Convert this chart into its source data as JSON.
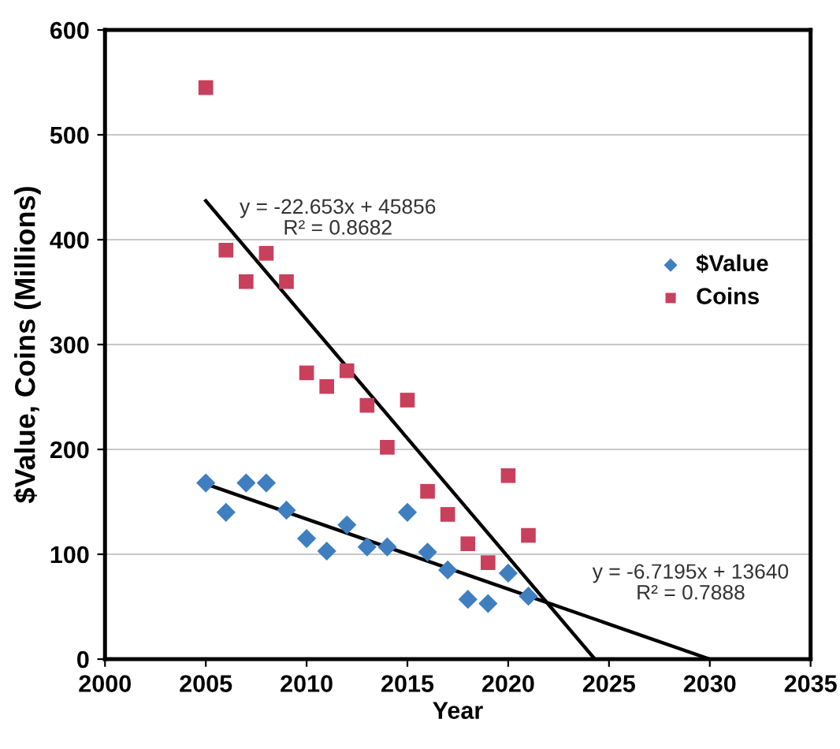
{
  "chart_data": {
    "type": "scatter",
    "xlabel": "Year",
    "ylabel": "$Value, Coins (Millions)",
    "xlim": [
      2000,
      2035
    ],
    "xticks": [
      2000,
      2005,
      2010,
      2015,
      2020,
      2025,
      2030,
      2035
    ],
    "ylim": [
      0,
      600
    ],
    "yticks": [
      0,
      100,
      200,
      300,
      400,
      500,
      600
    ],
    "grid": "y",
    "legend": "right",
    "series": [
      {
        "name": "$Value",
        "color": "#3f7fc0",
        "marker": "diamond",
        "x": [
          2005,
          2006,
          2007,
          2008,
          2009,
          2010,
          2011,
          2012,
          2013,
          2014,
          2015,
          2016,
          2017,
          2018,
          2019,
          2020,
          2021
        ],
        "values": [
          168,
          140,
          168,
          168,
          142,
          115,
          103,
          128,
          107,
          107,
          140,
          102,
          85,
          57,
          53,
          82,
          60
        ]
      },
      {
        "name": "Coins",
        "color": "#c8405c",
        "marker": "square",
        "x": [
          2005,
          2006,
          2007,
          2008,
          2009,
          2010,
          2011,
          2012,
          2013,
          2014,
          2015,
          2016,
          2017,
          2018,
          2019,
          2020,
          2021
        ],
        "values": [
          545,
          390,
          360,
          387,
          360,
          273,
          260,
          275,
          242,
          202,
          247,
          160,
          138,
          110,
          92,
          175,
          118
        ]
      },
      {
        "type": "line",
        "color": "#000000",
        "marker": "none",
        "x": [
          2005,
          2024.3
        ],
        "values": [
          437,
          0
        ]
      },
      {
        "type": "line",
        "color": "#000000",
        "marker": "none",
        "x": [
          2005,
          2030
        ],
        "values": [
          167,
          0
        ]
      }
    ],
    "annotations": [
      "y = -22.653x + 45856\nR² = 0.8682",
      "y = -6.7195x + 13640\nR² = 0.7888"
    ]
  }
}
